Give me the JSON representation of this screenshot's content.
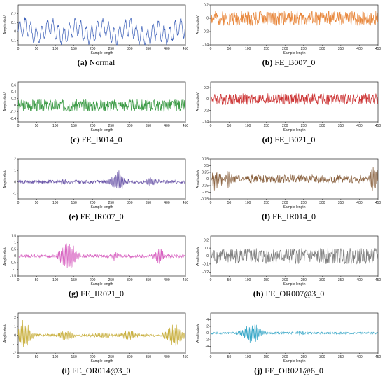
{
  "chart_data": [
    {
      "type": "line",
      "letter": "(a)",
      "label": "Normal",
      "color": "#3b5fb8",
      "ylim": [
        -0.15,
        0.3
      ],
      "yticks": [
        -0.1,
        0,
        0.1,
        0.2
      ],
      "xlim": [
        0,
        450
      ],
      "xticks": [
        0,
        50,
        100,
        150,
        200,
        250,
        300,
        350,
        400,
        450
      ],
      "xlabel": "Sample length",
      "ylabel": "Amplitude/V",
      "signal": {
        "kind": "normal",
        "amp": 0.1,
        "seed": 1
      }
    },
    {
      "type": "line",
      "letter": "(b)",
      "label": "FE_B007_0",
      "color": "#e8863a",
      "ylim": [
        -0.4,
        0.2
      ],
      "yticks": [
        -0.4,
        -0.2,
        0,
        0.2
      ],
      "xlim": [
        0,
        450
      ],
      "xticks": [
        0,
        50,
        100,
        150,
        200,
        250,
        300,
        350,
        400,
        450
      ],
      "xlabel": "Sample length",
      "ylabel": "Amplitude/V",
      "signal": {
        "kind": "noise",
        "amp": 0.11,
        "seed": 2
      }
    },
    {
      "type": "line",
      "letter": "(c)",
      "label": "FE_B014_0",
      "color": "#3a9a44",
      "ylim": [
        -0.5,
        0.7
      ],
      "yticks": [
        -0.4,
        -0.2,
        0,
        0.2,
        0.4,
        0.6
      ],
      "xlim": [
        0,
        450
      ],
      "xticks": [
        0,
        50,
        100,
        150,
        200,
        250,
        300,
        350,
        400,
        450
      ],
      "xlabel": "Sample length",
      "ylabel": "Amplitude/V",
      "signal": {
        "kind": "noise",
        "amp": 0.18,
        "seed": 3
      }
    },
    {
      "type": "line",
      "letter": "(d)",
      "label": "FE_B021_0",
      "color": "#cc3333",
      "ylim": [
        -0.4,
        0.3
      ],
      "yticks": [
        -0.4,
        -0.2,
        0,
        0.2
      ],
      "xlim": [
        0,
        450
      ],
      "xticks": [
        0,
        50,
        100,
        150,
        200,
        250,
        300,
        350,
        400,
        450
      ],
      "xlabel": "Sample length",
      "ylabel": "Amplitude/V",
      "signal": {
        "kind": "noise",
        "amp": 0.1,
        "seed": 4
      }
    },
    {
      "type": "line",
      "letter": "(e)",
      "label": "FE_IR007_0",
      "color": "#6a55a8",
      "ylim": [
        -1.5,
        2.0
      ],
      "yticks": [
        -1,
        0,
        1,
        2
      ],
      "xlim": [
        0,
        450
      ],
      "xticks": [
        0,
        50,
        100,
        150,
        200,
        250,
        300,
        350,
        400,
        450
      ],
      "xlabel": "Sample length",
      "ylabel": "Amplitude/V",
      "signal": {
        "kind": "bursts",
        "amp": 0.15,
        "seed": 5,
        "bursts": [
          [
            270,
            1.0,
            14
          ],
          [
            360,
            0.4,
            10
          ],
          [
            125,
            0.25,
            10
          ]
        ]
      }
    },
    {
      "type": "line",
      "letter": "(f)",
      "label": "FE_IR014_0",
      "color": "#8a6240",
      "ylim": [
        -0.75,
        0.75
      ],
      "yticks": [
        -0.75,
        -0.5,
        -0.25,
        0,
        0.25,
        0.5,
        0.75
      ],
      "xlim": [
        0,
        450
      ],
      "xticks": [
        0,
        50,
        100,
        150,
        200,
        250,
        300,
        350,
        400,
        450
      ],
      "xlabel": "Sample length",
      "ylabel": "Amplitude/V",
      "signal": {
        "kind": "bursts",
        "amp": 0.15,
        "seed": 6,
        "bursts": [
          [
            15,
            0.45,
            8
          ],
          [
            440,
            0.6,
            8
          ],
          [
            45,
            0.25,
            10
          ]
        ]
      }
    },
    {
      "type": "line",
      "letter": "(g)",
      "label": "FE_IR021_0",
      "color": "#d760c0",
      "ylim": [
        -1.5,
        1.5
      ],
      "yticks": [
        -1.5,
        -1,
        -0.5,
        0,
        0.5,
        1,
        1.5
      ],
      "xlim": [
        0,
        450
      ],
      "xticks": [
        0,
        50,
        100,
        150,
        200,
        250,
        300,
        350,
        400,
        450
      ],
      "xlabel": "Sample length",
      "ylabel": "Amplitude/V",
      "signal": {
        "kind": "bursts",
        "amp": 0.12,
        "seed": 7,
        "bursts": [
          [
            135,
            1.2,
            16
          ],
          [
            380,
            0.6,
            12
          ],
          [
            260,
            0.3,
            10
          ]
        ]
      }
    },
    {
      "type": "line",
      "letter": "(h)",
      "label": "FE_OR007@3_0",
      "color": "#7f7f7f",
      "ylim": [
        -0.25,
        0.25
      ],
      "yticks": [
        -0.2,
        -0.1,
        0,
        0.1,
        0.2
      ],
      "xlim": [
        0,
        450
      ],
      "xticks": [
        0,
        50,
        100,
        150,
        200,
        250,
        300,
        350,
        400,
        450
      ],
      "xlabel": "Sample length",
      "ylabel": "Amplitude/V",
      "signal": {
        "kind": "noise",
        "amp": 0.1,
        "seed": 8
      }
    },
    {
      "type": "line",
      "letter": "(i)",
      "label": "FE_OR014@3_0",
      "color": "#c9b040",
      "ylim": [
        -2.0,
        2.5
      ],
      "yticks": [
        -2,
        -1,
        0,
        1,
        2
      ],
      "xlim": [
        0,
        450
      ],
      "xticks": [
        0,
        50,
        100,
        150,
        200,
        250,
        300,
        350,
        400,
        450
      ],
      "xlabel": "Sample length",
      "ylabel": "Amplitude/V",
      "signal": {
        "kind": "bursts",
        "amp": 0.15,
        "seed": 9,
        "bursts": [
          [
            15,
            1.8,
            14
          ],
          [
            130,
            0.7,
            14
          ],
          [
            300,
            0.7,
            14
          ],
          [
            420,
            1.5,
            16
          ],
          [
            230,
            0.4,
            12
          ]
        ]
      }
    },
    {
      "type": "line",
      "letter": "(j)",
      "label": "FE_OR021@6_0",
      "color": "#3aa8c8",
      "ylim": [
        -6,
        6
      ],
      "yticks": [
        -4,
        -2,
        0,
        2,
        4
      ],
      "xlim": [
        0,
        450
      ],
      "xticks": [
        0,
        50,
        100,
        150,
        200,
        250,
        300,
        350,
        400,
        450
      ],
      "xlabel": "Sample length",
      "ylabel": "Amplitude/V",
      "signal": {
        "kind": "bursts",
        "amp": 0.3,
        "seed": 10,
        "bursts": [
          [
            110,
            3.5,
            18
          ],
          [
            240,
            0.6,
            12
          ]
        ]
      }
    }
  ]
}
